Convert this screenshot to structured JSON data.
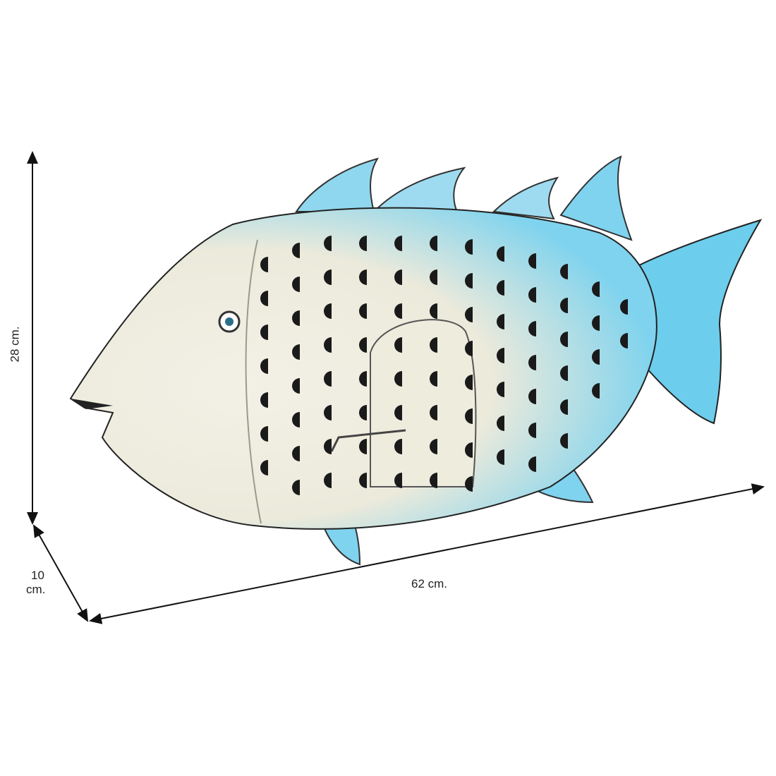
{
  "dimensions": {
    "height_label": "28 cm.",
    "depth_label_line1": "10",
    "depth_label_line2": "cm.",
    "length_label": "62 cm."
  },
  "colors": {
    "body": "#f1efe2",
    "accent_blue": "#5cc8e8",
    "holes": "#1a1a1a",
    "dimension_lines": "#111111"
  }
}
